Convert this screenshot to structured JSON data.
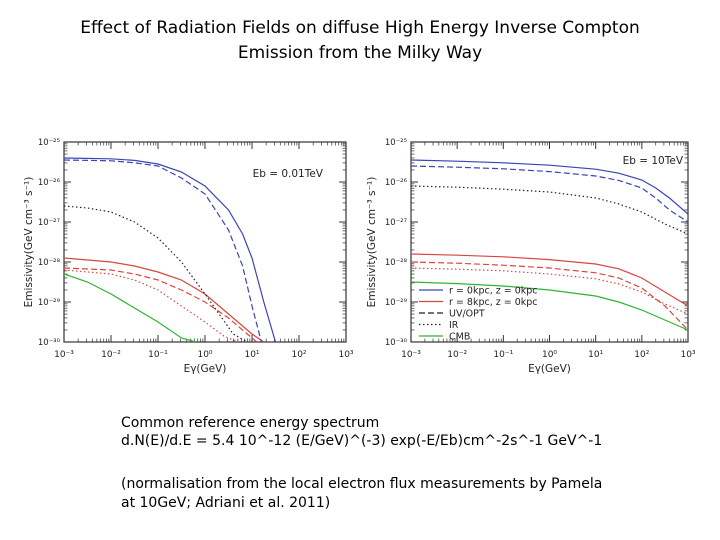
{
  "page": {
    "title_line1": "Effect of Radiation Fields on diffuse High Energy Inverse Compton",
    "title_line2": "Emission from the Milky Way",
    "caption_line1": "Common reference energy spectrum",
    "caption_line2": "d.N(E)/d.E = 5.4 10^-12 (E/GeV)^(-3) exp(-E/Eb)cm^-2s^-1 GeV^-1",
    "caption_line3": "(normalisation from the local electron flux measurements by Pamela",
    "caption_line4": "at 10GeV; Adriani et al. 2011)"
  },
  "colors": {
    "r0": "#3b43b5",
    "r8": "#d9463d",
    "total": "#222222",
    "green": "#2fb52f",
    "frame": "#333333"
  },
  "chart_data": [
    {
      "type": "line",
      "annotation": "Eb = 0.01TeV",
      "xlabel": "Eγ(GeV)",
      "ylabel": "Emissivity(GeV cm⁻³ s⁻¹)",
      "x_scale": "log",
      "y_scale": "log",
      "xlim_log10": [
        -3,
        3
      ],
      "ylim_log10": [
        -30,
        -25
      ],
      "x_ticks": [
        "10⁻³",
        "10⁻²",
        "10⁻¹",
        "10⁰",
        "10¹",
        "10²",
        "10³"
      ],
      "y_ticks": [
        "10⁻³⁰",
        "10⁻²⁹",
        "10⁻²⁸",
        "10⁻²⁷",
        "10⁻²⁶",
        "10⁻²⁵"
      ],
      "series": [
        {
          "name": "r = 0kpc, z = 0kpc",
          "color": "#3b43b5",
          "dash": "solid",
          "log10_E": [
            -3,
            -2,
            -1.5,
            -1,
            -0.5,
            0,
            0.5,
            0.8,
            1,
            1.25,
            1.5
          ],
          "log10_emissivity": [
            -25.4,
            -25.42,
            -25.46,
            -25.55,
            -25.75,
            -26.1,
            -26.7,
            -27.3,
            -27.9,
            -29.0,
            -30.0
          ]
        },
        {
          "name": "r = 8kpc, z = 0kpc",
          "color": "#d9463d",
          "dash": "solid",
          "log10_E": [
            -3,
            -2,
            -1.5,
            -1,
            -0.5,
            0,
            0.4,
            0.7,
            1,
            1.25
          ],
          "log10_emissivity": [
            -27.9,
            -28.0,
            -28.1,
            -28.25,
            -28.45,
            -28.8,
            -29.2,
            -29.5,
            -29.8,
            -30.0
          ]
        },
        {
          "name": "UV/OPT",
          "color": "#3b43b5",
          "dash": "dashed",
          "log10_E": [
            -3,
            -2,
            -1.5,
            -1,
            -0.5,
            0,
            0.5,
            0.8,
            1.0,
            1.2
          ],
          "log10_emissivity": [
            -25.45,
            -25.47,
            -25.52,
            -25.6,
            -25.9,
            -26.3,
            -27.2,
            -28.1,
            -29.1,
            -30.0
          ]
        },
        {
          "name": "UV/OPT",
          "color": "#d9463d",
          "dash": "dashed",
          "log10_E": [
            -3,
            -2,
            -1.5,
            -1,
            -0.5,
            0,
            0.5,
            0.9,
            1.1
          ],
          "log10_emissivity": [
            -28.15,
            -28.2,
            -28.3,
            -28.45,
            -28.7,
            -29.0,
            -29.4,
            -29.8,
            -30.0
          ]
        },
        {
          "name": "IR",
          "color": "#222222",
          "dash": "dotted",
          "log10_E": [
            -3,
            -2.5,
            -2,
            -1.5,
            -1,
            -0.5,
            0,
            0.3,
            0.6,
            0.9
          ],
          "log10_emissivity": [
            -26.6,
            -26.65,
            -26.75,
            -27.0,
            -27.4,
            -28.0,
            -28.8,
            -29.3,
            -29.8,
            -30.0
          ]
        },
        {
          "name": "IR",
          "color": "#d9463d",
          "dash": "dotted",
          "log10_E": [
            -3,
            -2,
            -1.5,
            -1,
            -0.5,
            0,
            0.4,
            0.7
          ],
          "log10_emissivity": [
            -28.2,
            -28.3,
            -28.45,
            -28.7,
            -29.1,
            -29.5,
            -29.85,
            -30.0
          ]
        },
        {
          "name": "CMB",
          "color": "#2fb52f",
          "dash": "solid",
          "log10_E": [
            -3,
            -2.5,
            -2,
            -1.5,
            -1,
            -0.5,
            -0.2
          ],
          "log10_emissivity": [
            -28.3,
            -28.5,
            -28.8,
            -29.15,
            -29.5,
            -29.9,
            -30.0
          ]
        }
      ]
    },
    {
      "type": "line",
      "annotation": "Eb = 10TeV",
      "xlabel": "Eγ(GeV)",
      "ylabel": "Emissivity(GeV cm⁻³ s⁻¹)",
      "x_scale": "log",
      "y_scale": "log",
      "xlim_log10": [
        -3,
        3
      ],
      "ylim_log10": [
        -30,
        -25
      ],
      "x_ticks": [
        "10⁻³",
        "10⁻²",
        "10⁻¹",
        "10⁰",
        "10¹",
        "10²",
        "10³"
      ],
      "y_ticks": [
        "10⁻³⁰",
        "10⁻²⁹",
        "10⁻²⁸",
        "10⁻²⁷",
        "10⁻²⁶",
        "10⁻²⁵"
      ],
      "legend": {
        "position": "bottom-left",
        "entries": [
          {
            "label": "r = 0kpc, z = 0kpc",
            "color": "#3b43b5",
            "dash": "solid"
          },
          {
            "label": "r = 8kpc, z = 0kpc",
            "color": "#d9463d",
            "dash": "solid"
          },
          {
            "label": "UV/OPT",
            "color": "#222222",
            "dash": "dashed"
          },
          {
            "label": "IR",
            "color": "#222222",
            "dash": "dotted"
          },
          {
            "label": "CMB",
            "color": "#2fb52f",
            "dash": "solid"
          }
        ]
      },
      "series": [
        {
          "name": "r = 0kpc, z = 0kpc",
          "color": "#3b43b5",
          "dash": "solid",
          "log10_E": [
            -3,
            -2,
            -1,
            0,
            1,
            1.5,
            2,
            2.3,
            2.6,
            3
          ],
          "log10_emissivity": [
            -25.45,
            -25.48,
            -25.52,
            -25.58,
            -25.68,
            -25.78,
            -25.95,
            -26.15,
            -26.4,
            -26.8
          ]
        },
        {
          "name": "UV/OPT",
          "color": "#3b43b5",
          "dash": "dashed",
          "log10_E": [
            -3,
            -2,
            -1,
            0,
            1,
            1.5,
            2,
            2.3,
            2.6,
            3
          ],
          "log10_emissivity": [
            -25.6,
            -25.63,
            -25.67,
            -25.74,
            -25.85,
            -25.96,
            -26.15,
            -26.4,
            -26.7,
            -27.0
          ]
        },
        {
          "name": "IR",
          "color": "#222222",
          "dash": "dotted",
          "log10_E": [
            -3,
            -2,
            -1,
            0,
            1,
            1.5,
            2,
            2.5,
            3
          ],
          "log10_emissivity": [
            -26.1,
            -26.13,
            -26.18,
            -26.25,
            -26.4,
            -26.55,
            -26.75,
            -27.05,
            -27.3
          ]
        },
        {
          "name": "r = 8kpc, z = 0kpc",
          "color": "#d9463d",
          "dash": "solid",
          "log10_E": [
            -3,
            -2,
            -1,
            0,
            1,
            1.5,
            2,
            2.5,
            3
          ],
          "log10_emissivity": [
            -27.8,
            -27.83,
            -27.87,
            -27.94,
            -28.05,
            -28.17,
            -28.4,
            -28.75,
            -29.1
          ]
        },
        {
          "name": "UV/OPT",
          "color": "#d9463d",
          "dash": "dashed",
          "log10_E": [
            -3,
            -2,
            -1,
            0,
            1,
            1.5,
            2,
            2.5,
            3
          ],
          "log10_emissivity": [
            -28.0,
            -28.03,
            -28.08,
            -28.15,
            -28.27,
            -28.4,
            -28.65,
            -29.1,
            -29.7
          ]
        },
        {
          "name": "IR",
          "color": "#d9463d",
          "dash": "dotted",
          "log10_E": [
            -3,
            -2,
            -1,
            0,
            1,
            1.5,
            2,
            2.5,
            3
          ],
          "log10_emissivity": [
            -28.15,
            -28.18,
            -28.22,
            -28.3,
            -28.42,
            -28.55,
            -28.75,
            -29.05,
            -29.3
          ]
        },
        {
          "name": "CMB",
          "color": "#2fb52f",
          "dash": "solid",
          "log10_E": [
            -3,
            -2,
            -1,
            0,
            1,
            1.5,
            2,
            2.5,
            3
          ],
          "log10_emissivity": [
            -28.5,
            -28.54,
            -28.6,
            -28.7,
            -28.85,
            -29.0,
            -29.2,
            -29.45,
            -29.7
          ]
        }
      ]
    }
  ]
}
